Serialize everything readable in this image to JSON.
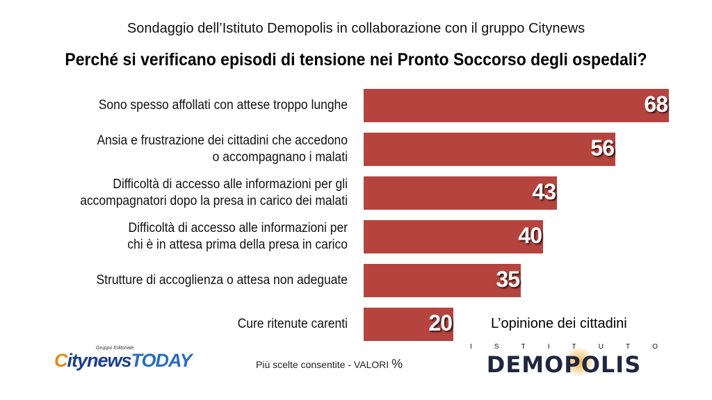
{
  "header": {
    "subtitle": "Sondaggio dell’Istituto Demopolis in collaborazione con il gruppo Citynews",
    "title": "Perché si verificano episodi di tensione nei Pronto Soccorso degli ospedali?"
  },
  "chart_data": {
    "type": "bar",
    "orientation": "horizontal",
    "title": "Perché si verificano episodi di tensione nei Pronto Soccorso degli ospedali?",
    "categories": [
      [
        "Sono spesso affollati con attese troppo lunghe"
      ],
      [
        "Ansia e frustrazione dei cittadini che accedono",
        "o accompagnano i malati"
      ],
      [
        "Difficoltà di accesso alle informazioni per gli",
        "accompagnatori dopo la presa in carico dei malati"
      ],
      [
        "Difficoltà di accesso alle informazioni per",
        "chi è in attesa prima della presa in carico"
      ],
      [
        "Strutture di accoglienza o attesa non adeguate"
      ],
      [
        "Cure ritenute carenti"
      ]
    ],
    "values": [
      68,
      56,
      43,
      40,
      35,
      20
    ],
    "bar_color": "#b5443e",
    "xlim": [
      0,
      68
    ],
    "grid": false,
    "legend": "none"
  },
  "footer": {
    "opinion": "L’opinione dei cittadini",
    "note": "Più scelte consentite  - VALORI",
    "note_unit": "%",
    "citynews_small": "Gruppo Editoriale",
    "citynews_c": "C",
    "citynews_city": "itynews",
    "citynews_today": "TODAY",
    "demopolis_istituto": [
      "I",
      "S",
      "T",
      "I",
      "T",
      "U",
      "T",
      "O"
    ],
    "demopolis_word": "DEMOPOLIS"
  }
}
